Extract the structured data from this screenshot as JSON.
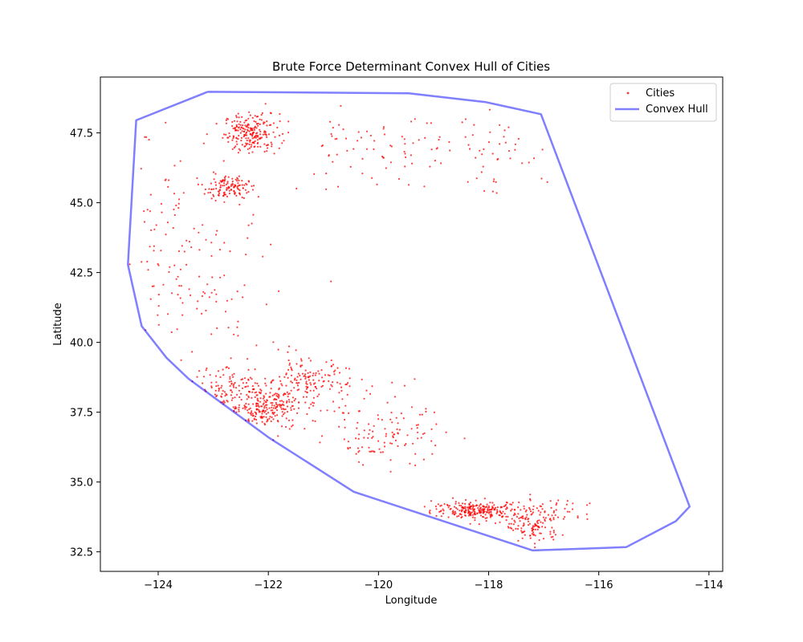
{
  "chart_data": {
    "type": "scatter",
    "title": "Brute Force Determinant Convex Hull of Cities",
    "xlabel": "Longitude",
    "ylabel": "Latitude",
    "xlim": [
      -125.05,
      -113.75
    ],
    "ylim": [
      31.8,
      49.5
    ],
    "xticks": [
      -124,
      -122,
      -120,
      -118,
      -116,
      -114
    ],
    "xtick_labels": [
      "−124",
      "−122",
      "−120",
      "−118",
      "−116",
      "−114"
    ],
    "yticks": [
      32.5,
      35.0,
      37.5,
      40.0,
      42.5,
      45.0,
      47.5
    ],
    "ytick_labels": [
      "32.5",
      "35.0",
      "37.5",
      "40.0",
      "42.5",
      "45.0",
      "47.5"
    ],
    "grid": false,
    "legend_position": "top-right",
    "colors": {
      "points": "#ff0000",
      "hull": "#0000ff"
    },
    "series": [
      {
        "name": "Cities",
        "kind": "scatter",
        "clusters": [
          {
            "cx": -122.3,
            "cy": 47.5,
            "sx": 0.25,
            "sy": 0.35,
            "n": 220
          },
          {
            "cx": -122.75,
            "cy": 45.55,
            "sx": 0.2,
            "sy": 0.2,
            "n": 120
          },
          {
            "cx": -122.1,
            "cy": 37.7,
            "sx": 0.35,
            "sy": 0.45,
            "n": 260
          },
          {
            "cx": -121.3,
            "cy": 38.6,
            "sx": 0.35,
            "sy": 0.4,
            "n": 120
          },
          {
            "cx": -118.2,
            "cy": 34.0,
            "sx": 0.4,
            "sy": 0.15,
            "n": 240
          },
          {
            "cx": -117.2,
            "cy": 33.5,
            "sx": 0.25,
            "sy": 0.4,
            "n": 140
          },
          {
            "cx": -119.8,
            "cy": 36.6,
            "sx": 0.5,
            "sy": 0.5,
            "n": 90
          },
          {
            "cx": -123.0,
            "cy": 41.5,
            "sx": 0.6,
            "sy": 2.0,
            "n": 90
          },
          {
            "cx": -123.9,
            "cy": 43.5,
            "sx": 0.3,
            "sy": 2.2,
            "n": 60
          },
          {
            "cx": -120.0,
            "cy": 46.8,
            "sx": 0.9,
            "sy": 0.7,
            "n": 80
          },
          {
            "cx": -117.7,
            "cy": 46.8,
            "sx": 0.6,
            "sy": 0.7,
            "n": 40
          },
          {
            "cx": -122.8,
            "cy": 38.4,
            "sx": 0.3,
            "sy": 0.4,
            "n": 70
          },
          {
            "cx": -120.5,
            "cy": 38.0,
            "sx": 0.6,
            "sy": 1.0,
            "n": 50
          },
          {
            "cx": -116.6,
            "cy": 33.9,
            "sx": 0.3,
            "sy": 0.2,
            "n": 25
          }
        ]
      },
      {
        "name": "Convex Hull",
        "kind": "line",
        "x": [
          -123.1,
          -119.45,
          -118.05,
          -117.05,
          -114.35,
          -114.6,
          -115.5,
          -116.5,
          -117.2,
          -120.45,
          -122.0,
          -123.45,
          -123.85,
          -124.3,
          -124.55,
          -124.4,
          -123.1
        ],
        "y": [
          48.97,
          48.92,
          48.6,
          48.17,
          34.12,
          33.6,
          32.67,
          32.6,
          32.55,
          34.65,
          36.6,
          38.7,
          39.45,
          40.58,
          42.78,
          47.95,
          48.97
        ]
      }
    ]
  }
}
